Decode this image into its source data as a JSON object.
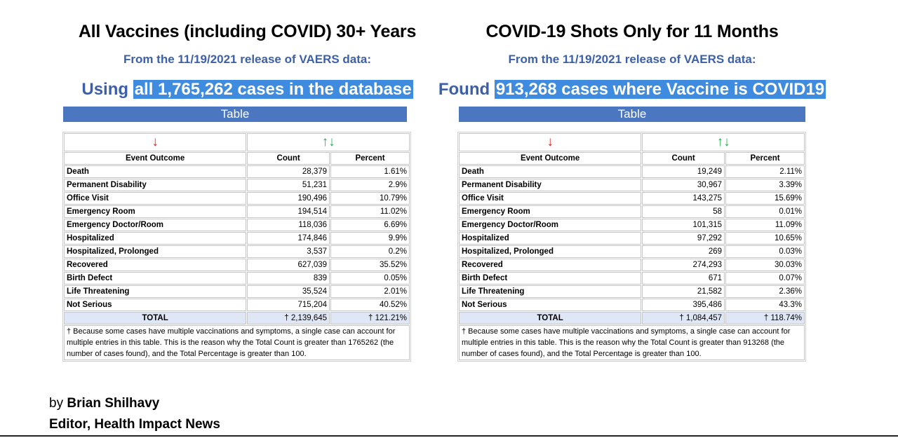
{
  "left": {
    "title": "All Vaccines (including COVID) 30+ Years",
    "subtitle": "From the 11/19/2021 release of VAERS data:",
    "headline_prefix": "Using",
    "headline_highlight": "all 1,765,262 cases in the database",
    "table_label": "Table",
    "down_arrow": "↓",
    "sort_arrows": "↑↓",
    "col_outcome": "Event Outcome",
    "col_count": "Count",
    "col_percent": "Percent",
    "rows": [
      {
        "label": "Death",
        "count": "28,379",
        "percent": "1.61%"
      },
      {
        "label": "Permanent Disability",
        "count": "51,231",
        "percent": "2.9%"
      },
      {
        "label": "Office Visit",
        "count": "190,496",
        "percent": "10.79%"
      },
      {
        "label": "Emergency Room",
        "count": "194,514",
        "percent": "11.02%"
      },
      {
        "label": "Emergency Doctor/Room",
        "count": "118,036",
        "percent": "6.69%"
      },
      {
        "label": "Hospitalized",
        "count": "174,846",
        "percent": "9.9%"
      },
      {
        "label": "Hospitalized, Prolonged",
        "count": "3,537",
        "percent": "0.2%"
      },
      {
        "label": "Recovered",
        "count": "627,039",
        "percent": "35.52%"
      },
      {
        "label": "Birth Defect",
        "count": "839",
        "percent": "0.05%"
      },
      {
        "label": "Life Threatening",
        "count": "35,524",
        "percent": "2.01%"
      },
      {
        "label": "Not Serious",
        "count": "715,204",
        "percent": "40.52%"
      }
    ],
    "total_label": "TOTAL",
    "total_count": "† 2,139,645",
    "total_percent": "† 121.21%",
    "footnote": "† Because some cases have multiple vaccinations and symptoms, a single case can account for multiple entries in this table. This is the reason why the Total Count is greater than 1765262 (the number of cases found), and the Total Percentage is greater than 100."
  },
  "right": {
    "title": "COVID-19 Shots Only for 11 Months",
    "subtitle": "From the 11/19/2021 release of VAERS data:",
    "headline_prefix": "Found",
    "headline_highlight": "913,268 cases where Vaccine is COVID19",
    "table_label": "Table",
    "down_arrow": "↓",
    "sort_arrows": "↑↓",
    "col_outcome": "Event Outcome",
    "col_count": "Count",
    "col_percent": "Percent",
    "rows": [
      {
        "label": "Death",
        "count": "19,249",
        "percent": "2.11%"
      },
      {
        "label": "Permanent Disability",
        "count": "30,967",
        "percent": "3.39%"
      },
      {
        "label": "Office Visit",
        "count": "143,275",
        "percent": "15.69%"
      },
      {
        "label": "Emergency Room",
        "count": "58",
        "percent": "0.01%"
      },
      {
        "label": "Emergency Doctor/Room",
        "count": "101,315",
        "percent": "11.09%"
      },
      {
        "label": "Hospitalized",
        "count": "97,292",
        "percent": "10.65%"
      },
      {
        "label": "Hospitalized, Prolonged",
        "count": "269",
        "percent": "0.03%"
      },
      {
        "label": "Recovered",
        "count": "274,293",
        "percent": "30.03%"
      },
      {
        "label": "Birth Defect",
        "count": "671",
        "percent": "0.07%"
      },
      {
        "label": "Life Threatening",
        "count": "21,582",
        "percent": "2.36%"
      },
      {
        "label": "Not Serious",
        "count": "395,486",
        "percent": "43.3%"
      }
    ],
    "total_label": "TOTAL",
    "total_count": "† 1,084,457",
    "total_percent": "† 118.74%",
    "footnote": "† Because some cases have multiple vaccinations and symptoms, a single case can account for multiple entries in this table. This is the reason why the Total Count is greater than 913268 (the number of cases found), and the Total Percentage is greater than 100."
  },
  "byline": {
    "prefix": "by",
    "author": "Brian Shilhavy",
    "role": "Editor, Health Impact News"
  },
  "colors": {
    "headline_blue": "#3d5ea8",
    "highlight": "#3f8be0",
    "table_bar": "#4a77c0",
    "arrow_red": "#e02020",
    "arrow_green": "#23b14d"
  }
}
